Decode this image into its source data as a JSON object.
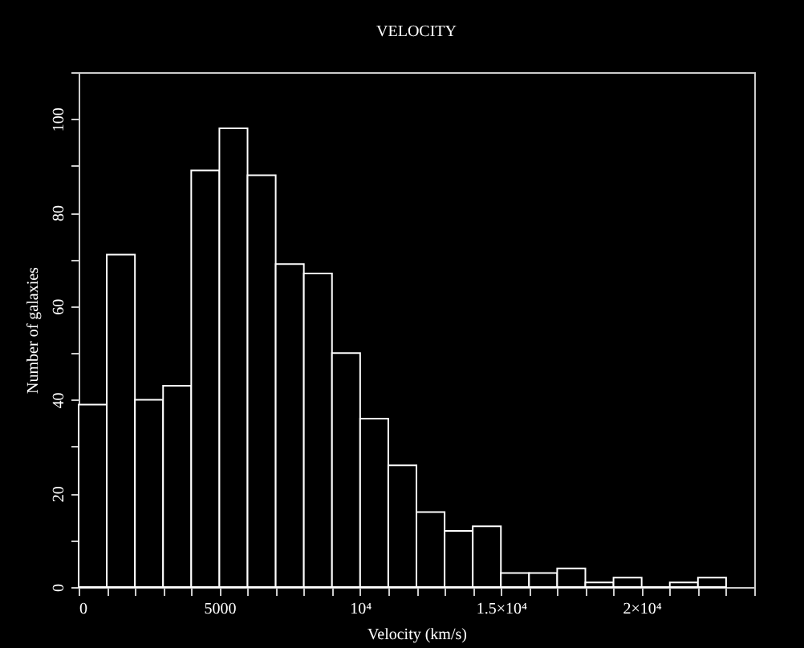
{
  "chart_data": {
    "type": "histogram",
    "title": "VELOCITY",
    "xlabel": "Velocity (km/s)",
    "ylabel": "Number of galaxies",
    "bins": [
      0,
      1000,
      2000,
      3000,
      4000,
      5000,
      6000,
      7000,
      8000,
      9000,
      10000,
      11000,
      12000,
      13000,
      14000,
      15000,
      16000,
      17000,
      18000,
      19000,
      20000,
      21000,
      22000,
      23000
    ],
    "values": [
      39,
      71,
      40,
      43,
      89,
      98,
      88,
      69,
      67,
      50,
      36,
      26,
      16,
      12,
      13,
      3,
      3,
      4,
      1,
      2,
      0,
      1,
      2
    ],
    "color": "#ffffff",
    "xlim": [
      0,
      24000
    ],
    "xticks": [
      0,
      {
        "value": 1000,
        "label": null
      },
      {
        "value": 2000,
        "label": null
      },
      {
        "value": 3000,
        "label": null
      },
      {
        "value": 4000,
        "label": null
      },
      5000,
      {
        "value": 6000,
        "label": null
      },
      {
        "value": 7000,
        "label": null
      },
      {
        "value": 8000,
        "label": null
      },
      {
        "value": 9000,
        "label": null
      },
      {
        "value": 10000,
        "label": "10⁴"
      },
      {
        "value": 11000,
        "label": null
      },
      {
        "value": 12000,
        "label": null
      },
      {
        "value": 13000,
        "label": null
      },
      {
        "value": 14000,
        "label": null
      },
      {
        "value": 15000,
        "label": "1.5×10⁴"
      },
      {
        "value": 16000,
        "label": null
      },
      {
        "value": 17000,
        "label": null
      },
      {
        "value": 18000,
        "label": null
      },
      {
        "value": 19000,
        "label": null
      },
      {
        "value": 20000,
        "label": "2×10⁴"
      },
      {
        "value": 21000,
        "label": null
      },
      {
        "value": 22000,
        "label": null
      },
      {
        "value": 23000,
        "label": null
      },
      {
        "value": 24000,
        "label": null
      }
    ],
    "ylim": [
      0,
      110
    ],
    "yticks": [
      0,
      {
        "value": 10,
        "label": null
      },
      20,
      {
        "value": 30,
        "label": null
      },
      40,
      {
        "value": 50,
        "label": null
      },
      60,
      {
        "value": 70,
        "label": null
      },
      80,
      {
        "value": 90,
        "label": null
      },
      100,
      {
        "value": 110,
        "label": null
      }
    ],
    "grid": false
  }
}
